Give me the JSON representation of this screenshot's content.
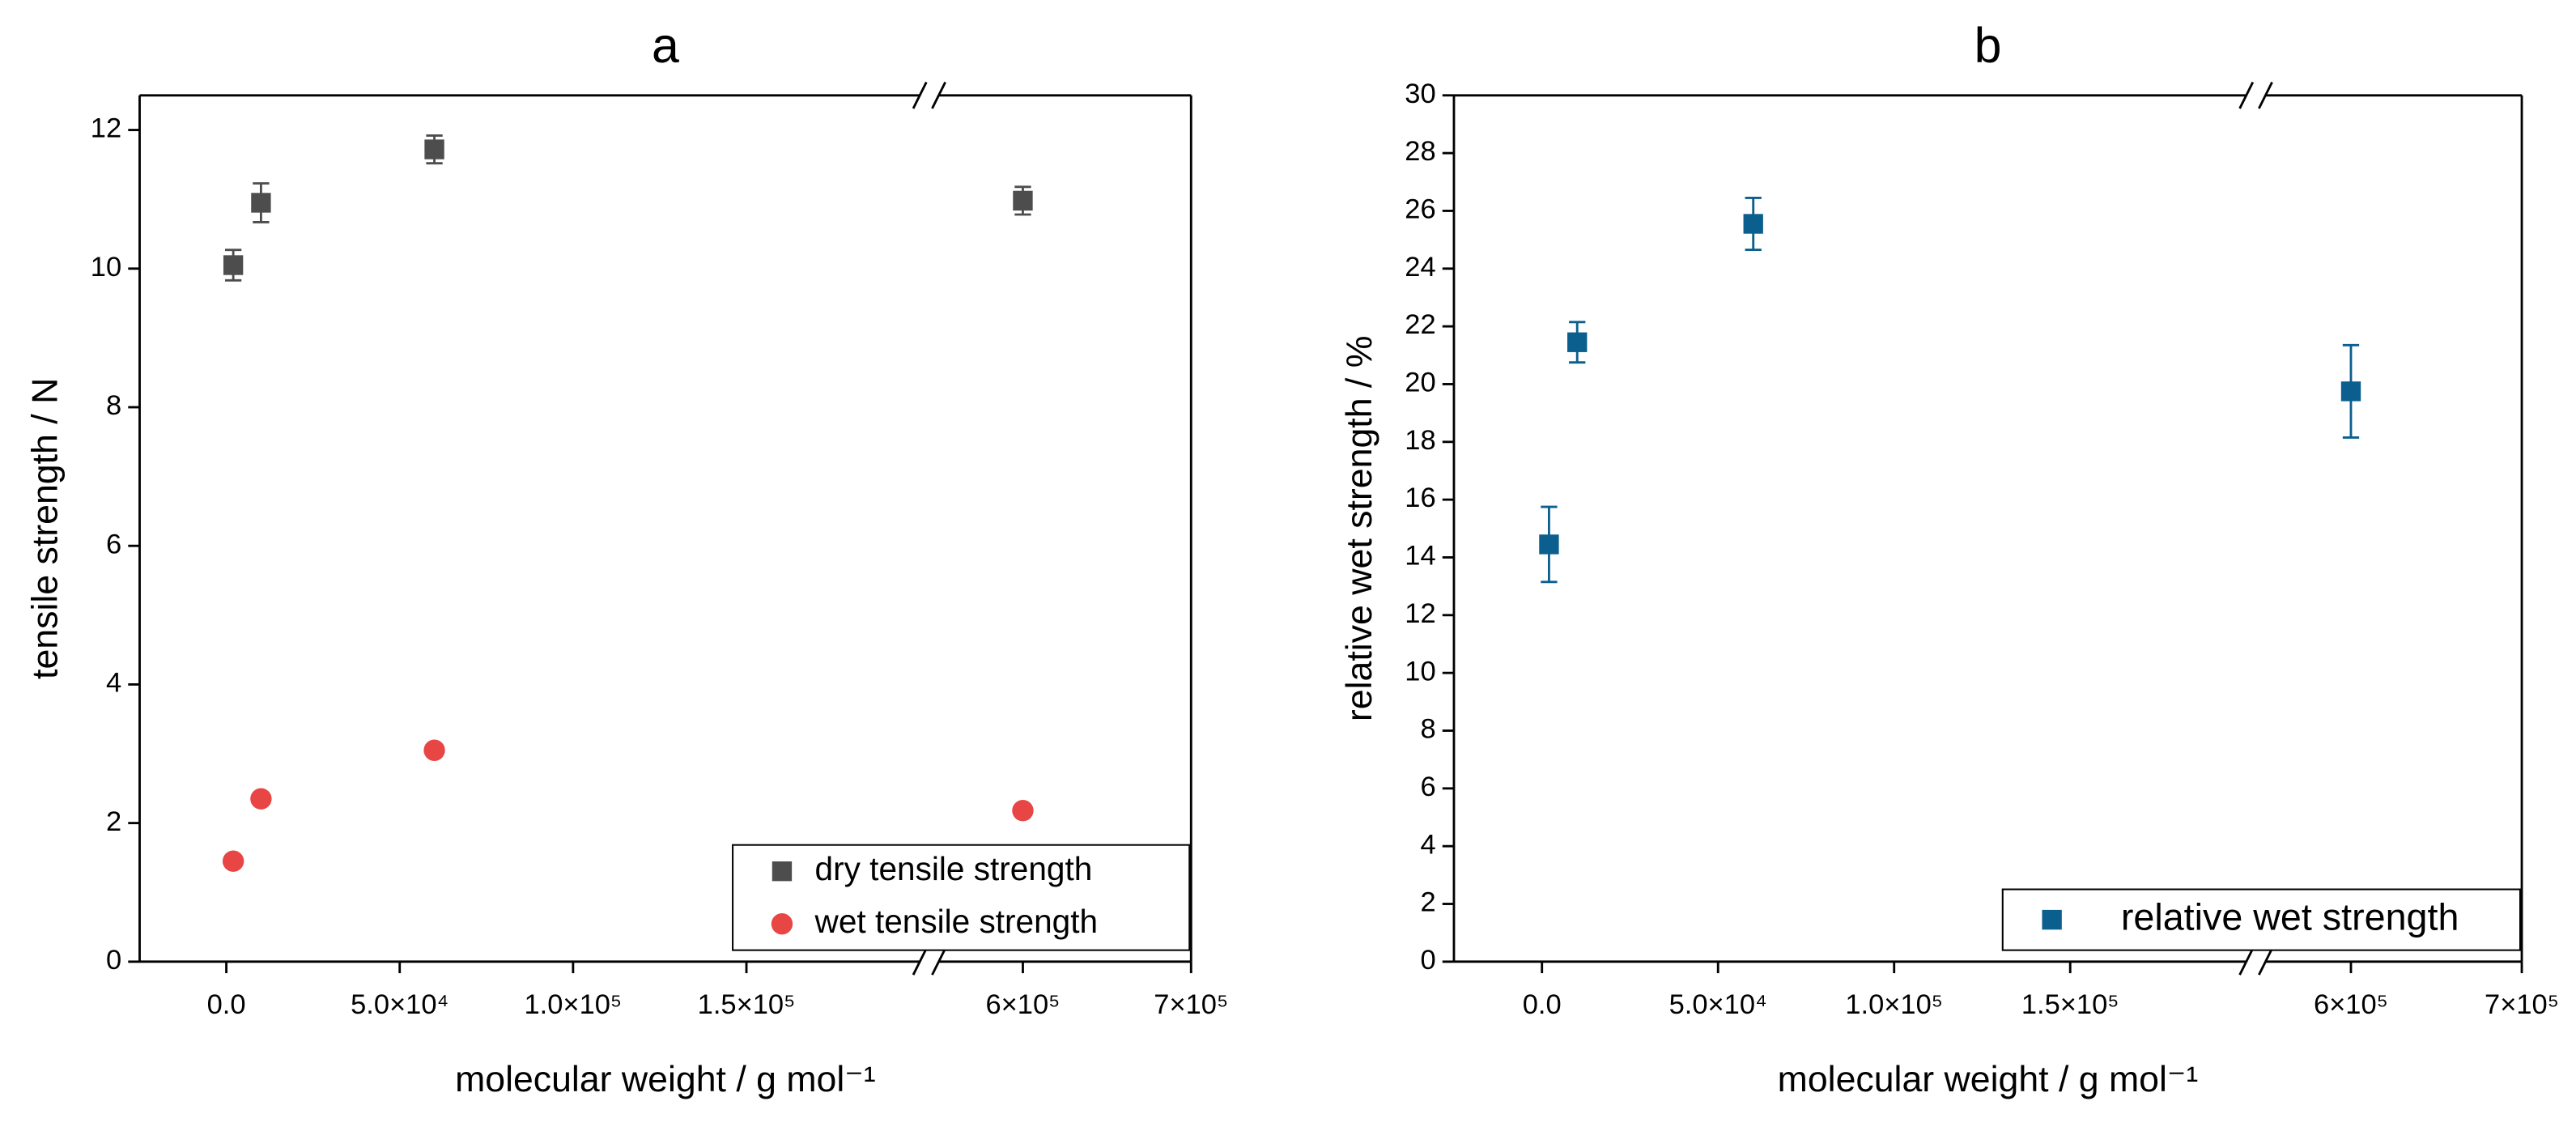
{
  "chart_data": [
    {
      "type": "scatter",
      "title": "a",
      "xlabel": "molecular weight / g mol⁻¹",
      "ylabel": "tensile strength / N",
      "x": [
        2000,
        10000,
        60000,
        600000
      ],
      "series": [
        {
          "name": "dry tensile strength",
          "color": "#4d4d4d",
          "marker": "square",
          "values": [
            10.05,
            10.95,
            11.72,
            10.98
          ],
          "errors": [
            0.22,
            0.28,
            0.2,
            0.2
          ]
        },
        {
          "name": "wet tensile strength",
          "color": "#e84545",
          "marker": "circle",
          "values": [
            1.45,
            2.35,
            3.05,
            2.18
          ],
          "errors": [
            0.05,
            0.05,
            0.05,
            0.06
          ]
        }
      ],
      "xlim": [
        -25000,
        700000
      ],
      "xbreak": [
        200000,
        550000
      ],
      "xticks": [
        {
          "value": 0,
          "label": "0.0"
        },
        {
          "value": 50000,
          "label": "5.0×10⁴"
        },
        {
          "value": 100000,
          "label": "1.0×10⁵"
        },
        {
          "value": 150000,
          "label": "1.5×10⁵"
        },
        {
          "value": 600000,
          "label": "6×10⁵"
        },
        {
          "value": 700000,
          "label": "7×10⁵"
        }
      ],
      "ylim": [
        0,
        12.5
      ],
      "yticks": [
        0,
        2,
        4,
        6,
        8,
        10,
        12
      ],
      "legend": "lower right"
    },
    {
      "type": "scatter",
      "title": "b",
      "xlabel": "molecular weight / g mol⁻¹",
      "ylabel": "relative wet strength / %",
      "x": [
        2000,
        10000,
        60000,
        600000
      ],
      "series": [
        {
          "name": "relative wet strength",
          "color": "#0b5f8f",
          "marker": "square",
          "values": [
            14.45,
            21.45,
            25.55,
            19.75
          ],
          "errors": [
            1.3,
            0.7,
            0.9,
            1.6
          ]
        }
      ],
      "xlim": [
        -25000,
        700000
      ],
      "xbreak": [
        200000,
        550000
      ],
      "xticks": [
        {
          "value": 0,
          "label": "0.0"
        },
        {
          "value": 50000,
          "label": "5.0×10⁴"
        },
        {
          "value": 100000,
          "label": "1.0×10⁵"
        },
        {
          "value": 150000,
          "label": "1.5×10⁵"
        },
        {
          "value": 600000,
          "label": "6×10⁵"
        },
        {
          "value": 700000,
          "label": "7×10⁵"
        }
      ],
      "ylim": [
        0,
        30
      ],
      "yticks": [
        0,
        2,
        4,
        6,
        8,
        10,
        12,
        14,
        16,
        18,
        20,
        22,
        24,
        26,
        28,
        30
      ],
      "legend": "lower right"
    }
  ]
}
